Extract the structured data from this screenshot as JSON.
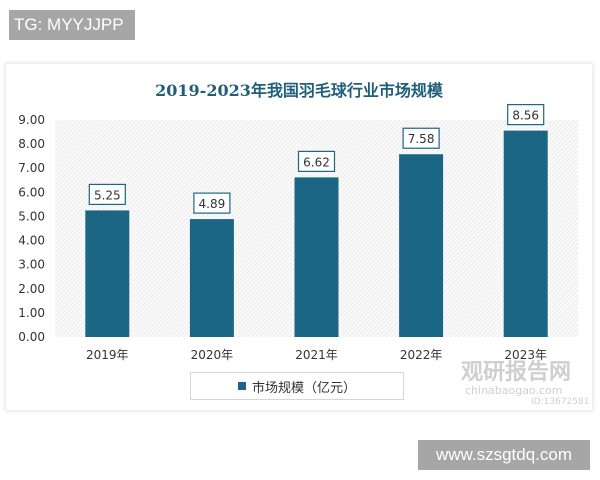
{
  "tags": {
    "top": "TG: MYYJJPP",
    "bottom": "www.szsgtdq.com"
  },
  "watermark": {
    "name": "观研报告网",
    "url": "chinabaogao.com",
    "id": "ID:13672581"
  },
  "colors": {
    "bar": "#1b6585",
    "title": "#1f5f7a",
    "label_border": "#1b6585"
  },
  "chart_data": {
    "type": "bar",
    "title": "2019-2023年我国羽毛球行业市场规模",
    "categories": [
      "2019年",
      "2020年",
      "2021年",
      "2022年",
      "2023年"
    ],
    "series": [
      {
        "name": "市场规模（亿元）",
        "values": [
          5.25,
          4.89,
          6.62,
          7.58,
          8.56
        ]
      }
    ],
    "value_labels": [
      "5.25",
      "4.89",
      "6.62",
      "7.58",
      "8.56"
    ],
    "yticks": [
      "0.00",
      "1.00",
      "2.00",
      "3.00",
      "4.00",
      "5.00",
      "6.00",
      "7.00",
      "8.00",
      "9.00"
    ],
    "ylim": [
      0,
      9
    ],
    "grid": false,
    "legend_position": "bottom-left"
  }
}
